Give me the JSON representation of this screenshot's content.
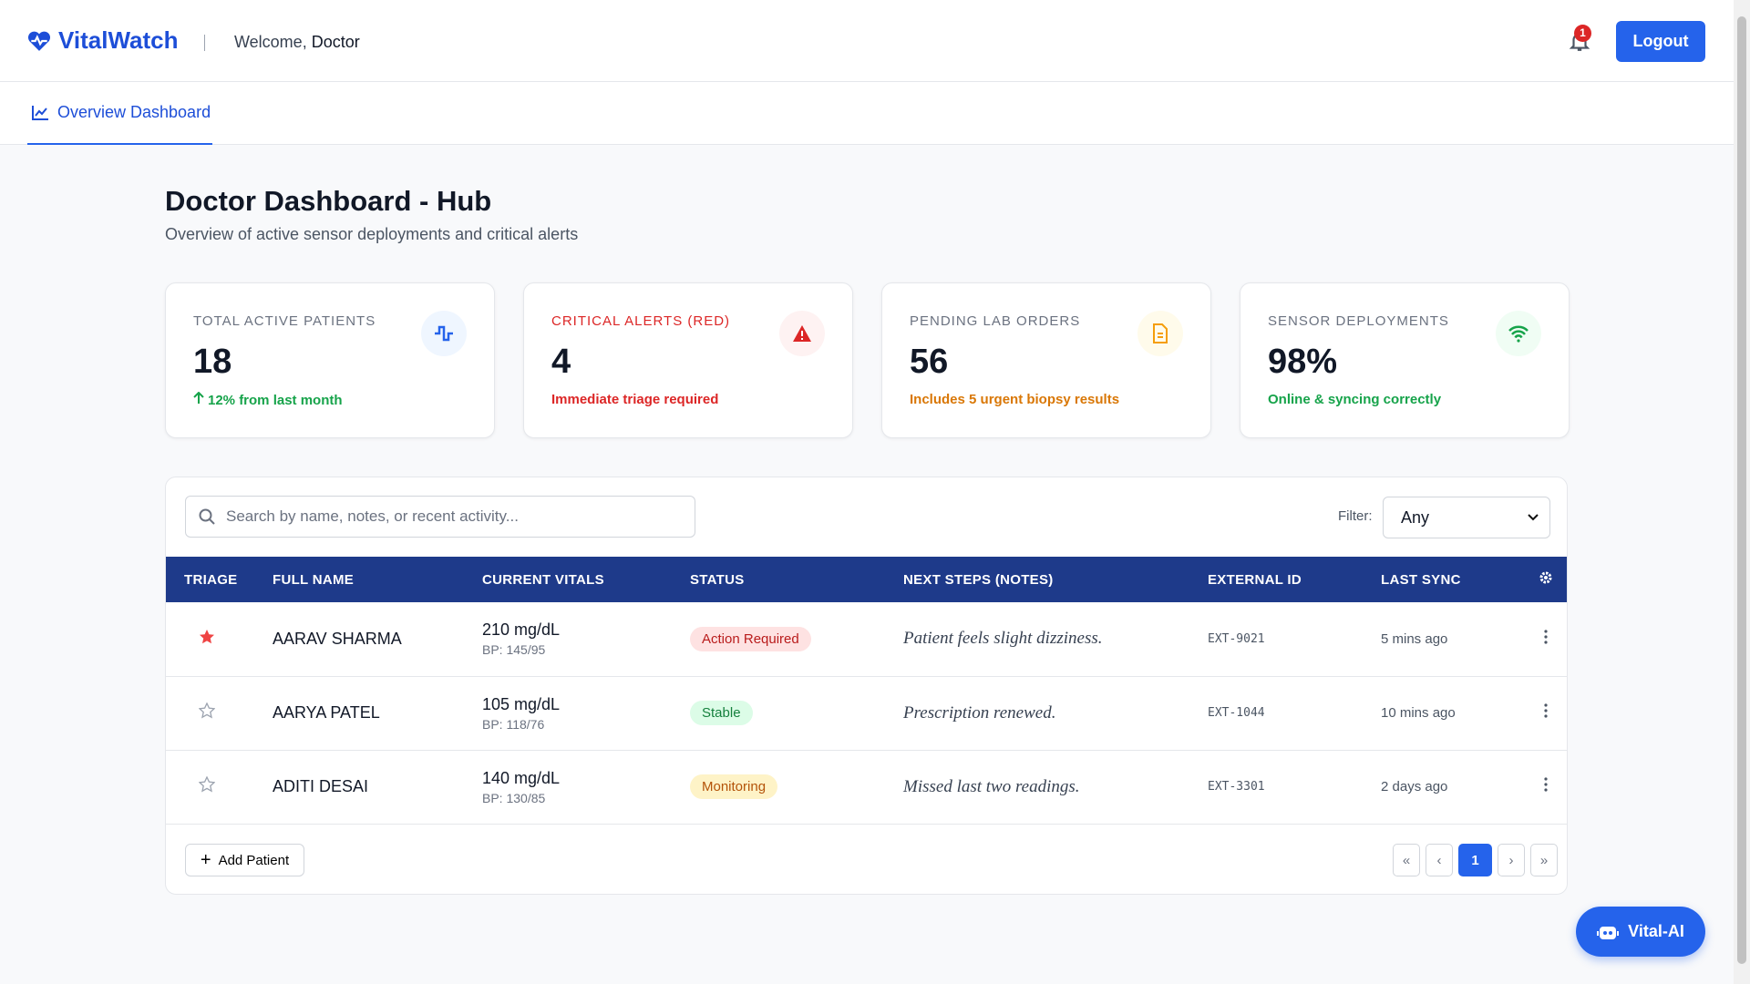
{
  "header": {
    "brand": "VitalWatch",
    "welcome": "Welcome,",
    "user": "Doctor",
    "notification_count": "1",
    "logout": "Logout"
  },
  "nav": {
    "tab": "Overview Dashboard"
  },
  "page": {
    "title": "Doctor Dashboard - Hub",
    "subtitle": "Overview of active sensor deployments and critical alerts"
  },
  "cards": [
    {
      "label": "TOTAL ACTIVE PATIENTS",
      "value": "18",
      "note": "12% from last month",
      "label_color": "#6b7280",
      "note_color": "#16a34a",
      "icon_color": "#2563eb",
      "icon_bg": "#eff6ff"
    },
    {
      "label": "CRITICAL ALERTS (RED)",
      "value": "4",
      "note": "Immediate triage required",
      "label_color": "#dc2626",
      "note_color": "#dc2626",
      "icon_color": "#dc2626",
      "icon_bg": "#fef2f2"
    },
    {
      "label": "PENDING LAB ORDERS",
      "value": "56",
      "note": "Includes 5 urgent biopsy results",
      "label_color": "#6b7280",
      "note_color": "#d97706",
      "icon_color": "#f59e0b",
      "icon_bg": "#fffbeb"
    },
    {
      "label": "SENSOR DEPLOYMENTS",
      "value": "98%",
      "note": "Online & syncing correctly",
      "label_color": "#6b7280",
      "note_color": "#16a34a",
      "icon_color": "#16a34a",
      "icon_bg": "#f0fdf4"
    }
  ],
  "table": {
    "search_placeholder": "Search by name, notes, or recent activity...",
    "filter_label": "Filter:",
    "filter_value": "Any",
    "columns": [
      "TRIAGE",
      "FULL NAME",
      "CURRENT VITALS",
      "STATUS",
      "NEXT STEPS (NOTES)",
      "EXTERNAL ID",
      "LAST SYNC"
    ],
    "rows": [
      {
        "starred": true,
        "name": "AARAV SHARMA",
        "vitals": "210 mg/dL",
        "bp": "BP: 145/95",
        "status": "Action Required",
        "status_color": "#b91c1c",
        "status_bg": "#fee2e2",
        "notes": "Patient feels slight dizziness.",
        "external_id": "EXT-9021",
        "last_sync": "5 mins ago"
      },
      {
        "starred": false,
        "name": "AARYA PATEL",
        "vitals": "105 mg/dL",
        "bp": "BP: 118/76",
        "status": "Stable",
        "status_color": "#15803d",
        "status_bg": "#dcfce7",
        "notes": "Prescription renewed.",
        "external_id": "EXT-1044",
        "last_sync": "10 mins ago"
      },
      {
        "starred": false,
        "name": "ADITI DESAI",
        "vitals": "140 mg/dL",
        "bp": "BP: 130/85",
        "status": "Monitoring",
        "status_color": "#b45309",
        "status_bg": "#fef3c7",
        "notes": "Missed last two readings.",
        "external_id": "EXT-3301",
        "last_sync": "2 days ago"
      }
    ],
    "add_button": "Add Patient",
    "current_page": "1"
  },
  "assistant": {
    "button": "Vital-AI"
  }
}
